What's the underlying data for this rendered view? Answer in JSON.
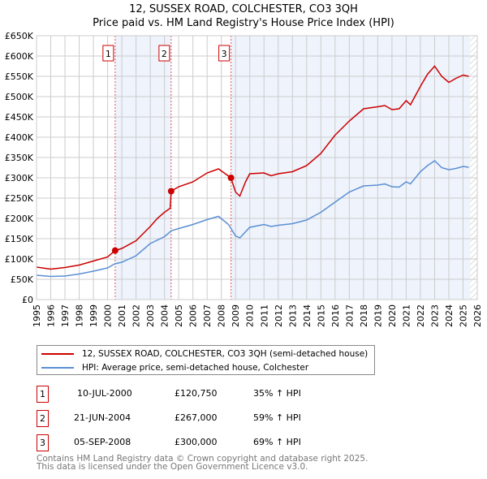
{
  "chart_data": {
    "type": "line",
    "title": "12, SUSSEX ROAD, COLCHESTER, CO3 3QH",
    "subtitle": "Price paid vs. HM Land Registry's House Price Index (HPI)",
    "xlim": [
      1995,
      2026
    ],
    "ylim": [
      0,
      650000
    ],
    "y_ticks": [
      {
        "v": 0,
        "label": "£0"
      },
      {
        "v": 50000,
        "label": "£50K"
      },
      {
        "v": 100000,
        "label": "£100K"
      },
      {
        "v": 150000,
        "label": "£150K"
      },
      {
        "v": 200000,
        "label": "£200K"
      },
      {
        "v": 250000,
        "label": "£250K"
      },
      {
        "v": 300000,
        "label": "£300K"
      },
      {
        "v": 350000,
        "label": "£350K"
      },
      {
        "v": 400000,
        "label": "£400K"
      },
      {
        "v": 450000,
        "label": "£450K"
      },
      {
        "v": 500000,
        "label": "£500K"
      },
      {
        "v": 550000,
        "label": "£550K"
      },
      {
        "v": 600000,
        "label": "£600K"
      },
      {
        "v": 650000,
        "label": "£650K"
      }
    ],
    "x_ticks": [
      "1995",
      "1996",
      "1997",
      "1998",
      "1999",
      "2000",
      "2001",
      "2002",
      "2003",
      "2004",
      "2005",
      "2006",
      "2007",
      "2008",
      "2009",
      "2010",
      "2011",
      "2012",
      "2013",
      "2014",
      "2015",
      "2016",
      "2017",
      "2018",
      "2019",
      "2020",
      "2021",
      "2022",
      "2023",
      "2024",
      "2025",
      "2026"
    ],
    "grid": true,
    "series": [
      {
        "name": "12, SUSSEX ROAD, COLCHESTER, CO3 3QH (semi-detached house)",
        "color": "#cc0000",
        "x": [
          1995,
          1996,
          1997,
          1998,
          1999,
          2000,
          2000.53,
          2001,
          2002,
          2003,
          2003.5,
          2004,
          2004.4,
          2004.47,
          2005,
          2006,
          2007,
          2007.8,
          2008.67,
          2009,
          2009.3,
          2009.7,
          2010,
          2011,
          2011.5,
          2012,
          2013,
          2014,
          2015,
          2016,
          2017,
          2018,
          2019,
          2019.5,
          2020,
          2020.5,
          2021,
          2021.3,
          2022,
          2022.5,
          2023,
          2023.5,
          2024,
          2024.5,
          2025,
          2025.4
        ],
        "y": [
          80000,
          75000,
          79000,
          85000,
          95000,
          105000,
          120750,
          126000,
          145000,
          180000,
          200000,
          215000,
          225000,
          267000,
          278000,
          290000,
          312000,
          322000,
          300000,
          265000,
          255000,
          290000,
          310000,
          312000,
          305000,
          310000,
          315000,
          330000,
          360000,
          405000,
          440000,
          470000,
          475000,
          478000,
          468000,
          470000,
          490000,
          480000,
          525000,
          555000,
          575000,
          550000,
          535000,
          545000,
          553000,
          550000
        ]
      },
      {
        "name": "HPI: Average price, semi-detached house, Colchester",
        "color": "#5b8fd4",
        "x": [
          1995,
          1996,
          1997,
          1998,
          1999,
          2000,
          2000.5,
          2001,
          2002,
          2003,
          2004,
          2004.5,
          2005,
          2006,
          2007,
          2007.8,
          2008.5,
          2009,
          2009.3,
          2010,
          2011,
          2011.5,
          2012,
          2013,
          2014,
          2015,
          2016,
          2017,
          2018,
          2019,
          2019.5,
          2020,
          2020.5,
          2021,
          2021.3,
          2022,
          2022.5,
          2023,
          2023.5,
          2024,
          2024.5,
          2025,
          2025.4
        ],
        "y": [
          60000,
          57000,
          58000,
          63000,
          70000,
          78000,
          88000,
          92000,
          108000,
          138000,
          155000,
          170000,
          175000,
          185000,
          197000,
          205000,
          185000,
          157000,
          152000,
          178000,
          185000,
          180000,
          183000,
          187000,
          196000,
          215000,
          240000,
          265000,
          280000,
          282000,
          285000,
          278000,
          277000,
          290000,
          285000,
          315000,
          330000,
          342000,
          325000,
          320000,
          323000,
          328000,
          326000
        ]
      }
    ],
    "sales": [
      {
        "num": "1",
        "x": 2000.53,
        "date": "10-JUL-2000",
        "price": "£120,750",
        "value": 120750,
        "hpi": "35% ↑ HPI"
      },
      {
        "num": "2",
        "x": 2004.47,
        "date": "21-JUN-2004",
        "price": "£267,000",
        "value": 267000,
        "hpi": "59% ↑ HPI"
      },
      {
        "num": "3",
        "x": 2008.68,
        "date": "05-SEP-2008",
        "price": "£300,000",
        "value": 300000,
        "hpi": "69% ↑ HPI"
      }
    ],
    "forecast_from": 2025.5,
    "legend_position": "bottom"
  },
  "footer": {
    "line1": "Contains HM Land Registry data © Crown copyright and database right 2025.",
    "line2": "This data is licensed under the Open Government Licence v3.0."
  }
}
